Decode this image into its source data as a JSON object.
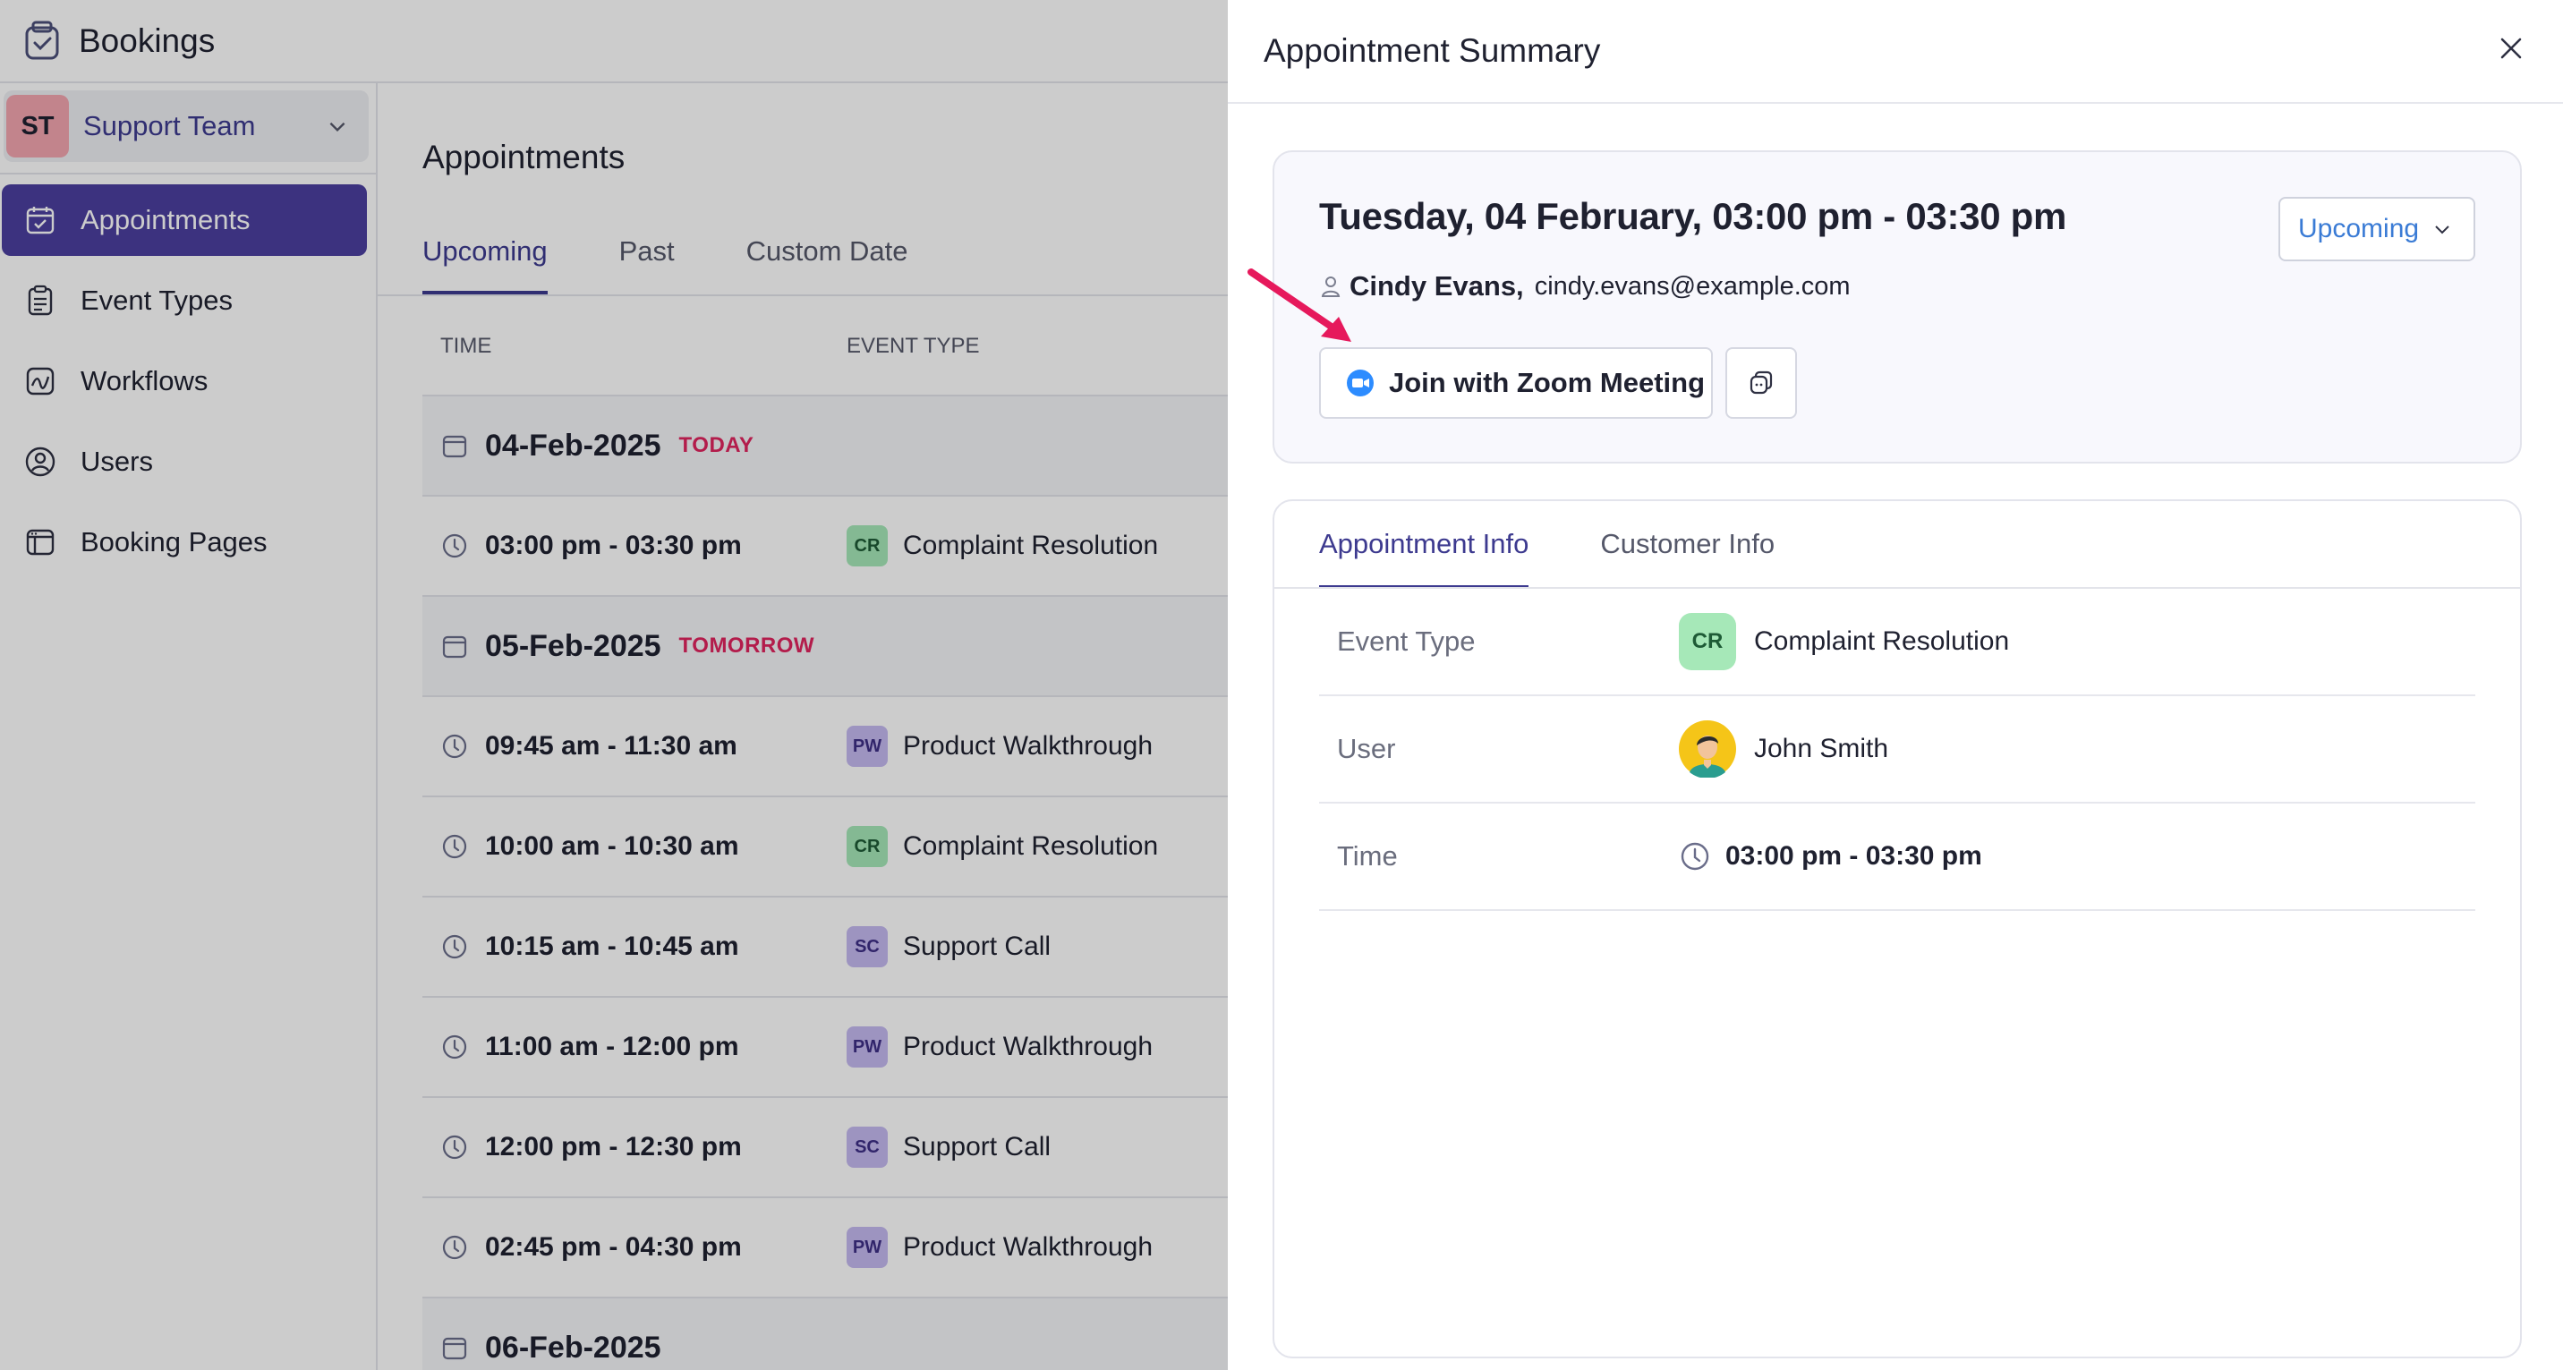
{
  "app": {
    "title": "Bookings",
    "team": {
      "initials": "ST",
      "name": "Support Team"
    },
    "nav": [
      {
        "label": "Appointments",
        "icon": "calendar-check-icon",
        "active": true
      },
      {
        "label": "Event Types",
        "icon": "clipboard-icon",
        "active": false
      },
      {
        "label": "Workflows",
        "icon": "workflow-icon",
        "active": false
      },
      {
        "label": "Users",
        "icon": "user-circle-icon",
        "active": false
      },
      {
        "label": "Booking Pages",
        "icon": "browser-icon",
        "active": false
      }
    ]
  },
  "main": {
    "heading": "Appointments",
    "tabs": [
      "Upcoming",
      "Past",
      "Custom Date"
    ],
    "columns": [
      "TIME",
      "EVENT TYPE"
    ],
    "rows": [
      {
        "kind": "date",
        "date": "04-Feb-2025",
        "tag": "TODAY"
      },
      {
        "kind": "slot",
        "time": "03:00 pm - 03:30 pm",
        "badge": "CR",
        "event": "Complaint Resolution"
      },
      {
        "kind": "date",
        "date": "05-Feb-2025",
        "tag": "TOMORROW"
      },
      {
        "kind": "slot",
        "time": "09:45 am - 11:30 am",
        "badge": "PW",
        "event": "Product Walkthrough"
      },
      {
        "kind": "slot",
        "time": "10:00 am - 10:30 am",
        "badge": "CR",
        "event": "Complaint Resolution"
      },
      {
        "kind": "slot",
        "time": "10:15 am - 10:45 am",
        "badge": "SC",
        "event": "Support Call"
      },
      {
        "kind": "slot",
        "time": "11:00 am - 12:00 pm",
        "badge": "PW",
        "event": "Product Walkthrough"
      },
      {
        "kind": "slot",
        "time": "12:00 pm - 12:30 pm",
        "badge": "SC",
        "event": "Support Call"
      },
      {
        "kind": "slot",
        "time": "02:45 pm - 04:30 pm",
        "badge": "PW",
        "event": "Product Walkthrough"
      },
      {
        "kind": "date",
        "date": "06-Feb-2025",
        "tag": ""
      }
    ]
  },
  "panel": {
    "title": "Appointment Summary",
    "when": "Tuesday, 04 February, 03:00 pm - 03:30 pm",
    "status": "Upcoming",
    "customer_name": "Cindy Evans,",
    "customer_email": "cindy.evans@example.com",
    "join_label": "Join with Zoom Meeting",
    "tabs": [
      "Appointment Info",
      "Customer Info"
    ],
    "info": {
      "event_type_label": "Event Type",
      "event_type_badge": "CR",
      "event_type_value": "Complaint Resolution",
      "user_label": "User",
      "user_value": "John Smith",
      "time_label": "Time",
      "time_value": "03:00 pm - 03:30 pm"
    }
  },
  "colors": {
    "accent": "#4b3f9f",
    "link": "#3a7bd5",
    "alert": "#e0245e",
    "arrow": "#e6195c"
  }
}
